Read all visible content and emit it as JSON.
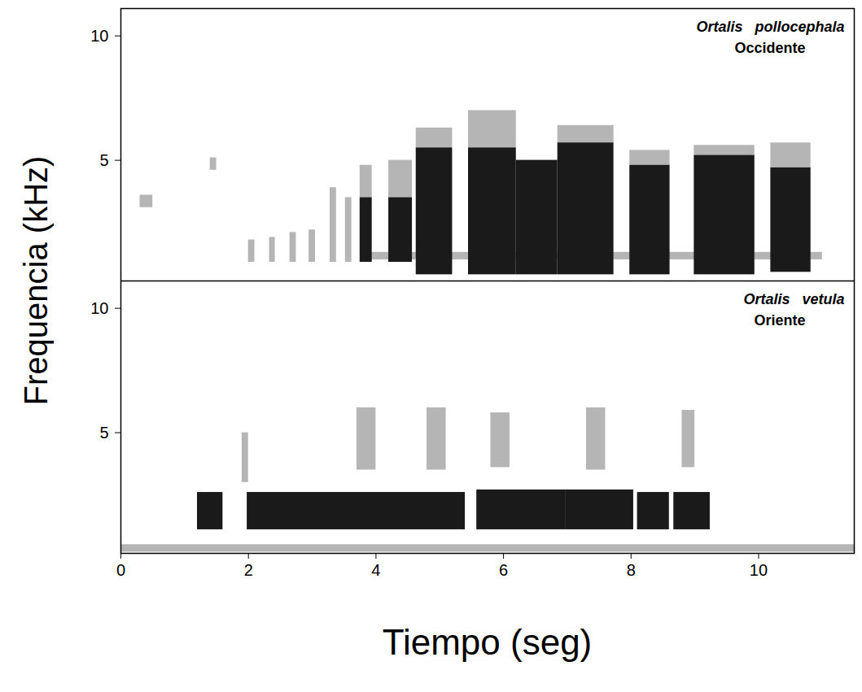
{
  "x_label": "Tiempo (seg)",
  "y_label": "Frequencia (kHz)",
  "chart_data": [
    {
      "type": "spectrogram",
      "title": "Ortalis   pollocephala",
      "subtitle": "Occidente",
      "xlim": [
        0,
        11.5
      ],
      "ylim": [
        0.15,
        11.1
      ],
      "yticks": [
        5,
        10
      ],
      "tick_labels": "y",
      "series": [
        {
          "color": "#b5b5b5",
          "values": [
            [
              0.3,
              0.5,
              3.1,
              3.6
            ],
            [
              1.4,
              1.5,
              4.6,
              5.1
            ],
            [
              2.0,
              2.1,
              0.9,
              1.8
            ],
            [
              2.33,
              2.42,
              0.9,
              1.9
            ],
            [
              2.65,
              2.75,
              0.9,
              2.1
            ],
            [
              2.95,
              3.05,
              0.9,
              2.2
            ],
            [
              3.28,
              3.38,
              0.9,
              3.9
            ],
            [
              3.52,
              3.62,
              0.9,
              3.5
            ],
            [
              3.75,
              3.94,
              3.5,
              4.8
            ],
            [
              4.2,
              4.57,
              3.5,
              5.0
            ],
            [
              4.63,
              5.2,
              5.5,
              6.3
            ],
            [
              5.45,
              6.2,
              5.5,
              7.0
            ],
            [
              6.85,
              7.73,
              5.7,
              6.4
            ],
            [
              7.98,
              8.61,
              4.8,
              5.4
            ],
            [
              8.99,
              9.94,
              5.2,
              5.6
            ],
            [
              10.19,
              10.82,
              4.7,
              5.7
            ],
            [
              3.9,
              11.0,
              1.0,
              1.3
            ]
          ]
        },
        {
          "color": "#1a1a1a",
          "values": [
            [
              3.75,
              3.94,
              0.9,
              3.5
            ],
            [
              4.2,
              4.57,
              0.9,
              3.5
            ],
            [
              4.63,
              5.2,
              0.4,
              5.5
            ],
            [
              5.45,
              6.2,
              0.4,
              5.5
            ],
            [
              6.2,
              6.85,
              0.4,
              5.0
            ],
            [
              6.85,
              7.73,
              0.4,
              5.7
            ],
            [
              7.98,
              8.61,
              0.4,
              4.8
            ],
            [
              8.99,
              9.94,
              0.4,
              5.2
            ],
            [
              10.19,
              10.82,
              0.5,
              4.7
            ]
          ]
        }
      ]
    },
    {
      "type": "spectrogram",
      "title": "Ortalis   vetula",
      "subtitle": "Oriente",
      "xlim": [
        0,
        11.5
      ],
      "ylim": [
        0.15,
        11.1
      ],
      "xticks": [
        0,
        2,
        4,
        6,
        8,
        10
      ],
      "yticks": [
        5,
        10
      ],
      "series": [
        {
          "color": "#b5b5b5",
          "values": [
            [
              0,
              11.5,
              0.2,
              0.5
            ],
            [
              1.9,
              2.0,
              3.0,
              5.0
            ],
            [
              3.7,
              4.0,
              3.5,
              6.0
            ],
            [
              4.8,
              5.1,
              3.5,
              6.0
            ],
            [
              5.8,
              6.1,
              3.6,
              5.8
            ],
            [
              7.3,
              7.6,
              3.5,
              6.0
            ],
            [
              8.8,
              9.0,
              3.6,
              5.9
            ]
          ]
        },
        {
          "color": "#1a1a1a",
          "values": [
            [
              1.2,
              1.6,
              1.1,
              2.6
            ],
            [
              1.98,
              5.4,
              1.1,
              2.6
            ],
            [
              5.58,
              6.97,
              1.1,
              2.7
            ],
            [
              6.97,
              8.04,
              1.1,
              2.7
            ],
            [
              8.1,
              8.6,
              1.1,
              2.6
            ],
            [
              8.67,
              9.24,
              1.1,
              2.6
            ]
          ]
        }
      ]
    }
  ]
}
